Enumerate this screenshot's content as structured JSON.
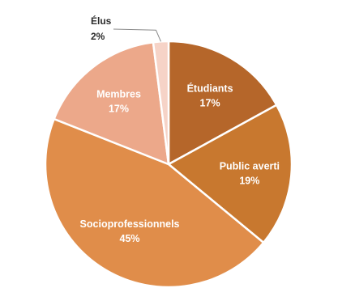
{
  "chart_data": {
    "type": "pie",
    "slices": [
      {
        "label": "Étudiants",
        "value": 17,
        "value_text": "17%",
        "color": "#b5662a",
        "label_position": "inside"
      },
      {
        "label": "Public averti",
        "value": 19,
        "value_text": "19%",
        "color": "#c8782f",
        "label_position": "inside"
      },
      {
        "label": "Socioprofessionnels",
        "value": 45,
        "value_text": "45%",
        "color": "#e08d4a",
        "label_position": "inside"
      },
      {
        "label": "Membres",
        "value": 17,
        "value_text": "17%",
        "color": "#eca88a",
        "label_position": "inside"
      },
      {
        "label": "Élus",
        "value": 2,
        "value_text": "2%",
        "color": "#f6d3c7",
        "label_position": "outside"
      }
    ]
  }
}
